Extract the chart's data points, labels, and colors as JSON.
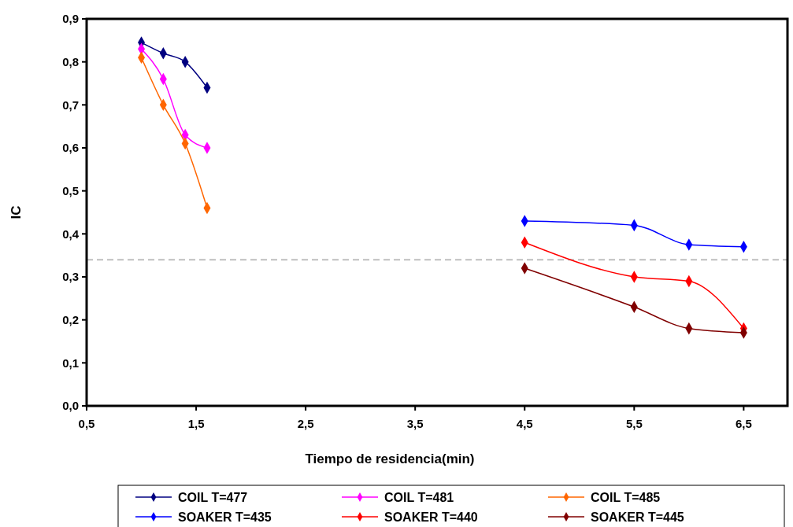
{
  "chart_data": {
    "type": "line",
    "xlabel": "Tiempo de residencia(min)",
    "ylabel": "IC",
    "xlim": [
      0.5,
      6.9
    ],
    "xticks": [
      {
        "value": 0.5,
        "label": "0,5"
      },
      {
        "value": 1.5,
        "label": "1,5"
      },
      {
        "value": 2.5,
        "label": "2,5"
      },
      {
        "value": 3.5,
        "label": "3,5"
      },
      {
        "value": 4.5,
        "label": "4,5"
      },
      {
        "value": 5.5,
        "label": "5,5"
      },
      {
        "value": 6.5,
        "label": "6,5"
      }
    ],
    "ylim": [
      0,
      0.9
    ],
    "yticks": [
      {
        "value": 0,
        "label": "0,0"
      },
      {
        "value": 0.1,
        "label": "0,1"
      },
      {
        "value": 0.2,
        "label": "0,2"
      },
      {
        "value": 0.3,
        "label": "0,3"
      },
      {
        "value": 0.4,
        "label": "0,4"
      },
      {
        "value": 0.5,
        "label": "0,5"
      },
      {
        "value": 0.6,
        "label": "0,6"
      },
      {
        "value": 0.7,
        "label": "0,7"
      },
      {
        "value": 0.8,
        "label": "0,8"
      },
      {
        "value": 0.9,
        "label": "0,9"
      }
    ],
    "series": [
      {
        "name": "COIL T=477",
        "color": "#000080",
        "x": [
          1.0,
          1.2,
          1.4,
          1.6
        ],
        "values": [
          0.845,
          0.82,
          0.8,
          0.74
        ]
      },
      {
        "name": "COIL T=481",
        "color": "#ff00ff",
        "x": [
          1.0,
          1.2,
          1.4,
          1.6
        ],
        "values": [
          0.83,
          0.76,
          0.63,
          0.6
        ]
      },
      {
        "name": "COIL T=485",
        "color": "#ff6600",
        "x": [
          1.0,
          1.2,
          1.4,
          1.6
        ],
        "values": [
          0.81,
          0.7,
          0.61,
          0.46
        ]
      },
      {
        "name": "SOAKER T=435",
        "color": "#0000ff",
        "x": [
          4.5,
          5.5,
          6.0,
          6.5
        ],
        "values": [
          0.43,
          0.42,
          0.375,
          0.37
        ]
      },
      {
        "name": "SOAKER T=440",
        "color": "#ff0000",
        "x": [
          4.5,
          5.5,
          6.0,
          6.5
        ],
        "values": [
          0.38,
          0.3,
          0.29,
          0.18
        ]
      },
      {
        "name": "SOAKER T=445",
        "color": "#800000",
        "x": [
          4.5,
          5.5,
          6.0,
          6.5
        ],
        "values": [
          0.32,
          0.23,
          0.18,
          0.17
        ]
      }
    ],
    "ref_lines": [
      {
        "axis": "y",
        "value": 0.34,
        "color": "#bfbfbf",
        "line_style": "dashed"
      }
    ],
    "marker": "diamond",
    "line_style": "solid",
    "grid": false,
    "legend": "bottom"
  }
}
